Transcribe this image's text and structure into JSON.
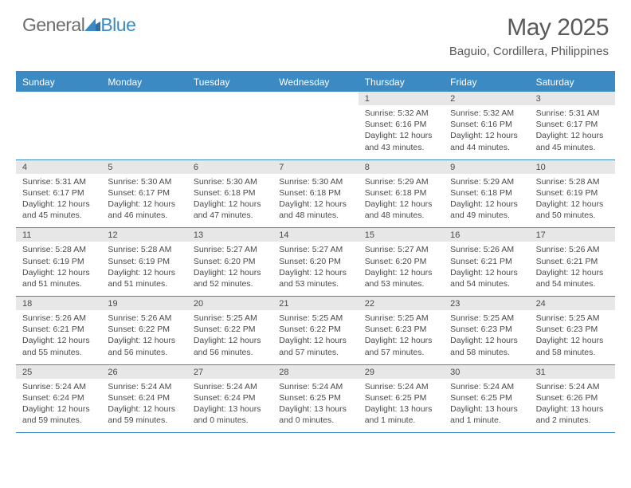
{
  "logo": {
    "part1": "General",
    "part2": "Blue"
  },
  "title": "May 2025",
  "location": "Baguio, Cordillera, Philippines",
  "colors": {
    "accent": "#3b8ac4",
    "header_bg": "#3b8ac4",
    "daynum_bg": "#e7e7e7",
    "text": "#4a4a4a",
    "title_text": "#5a5a5a",
    "logo_gray": "#6d6d6d"
  },
  "dow": [
    "Sunday",
    "Monday",
    "Tuesday",
    "Wednesday",
    "Thursday",
    "Friday",
    "Saturday"
  ],
  "weeks": [
    [
      {
        "n": "",
        "s": ""
      },
      {
        "n": "",
        "s": ""
      },
      {
        "n": "",
        "s": ""
      },
      {
        "n": "",
        "s": ""
      },
      {
        "n": "1",
        "s": "Sunrise: 5:32 AM\nSunset: 6:16 PM\nDaylight: 12 hours and 43 minutes."
      },
      {
        "n": "2",
        "s": "Sunrise: 5:32 AM\nSunset: 6:16 PM\nDaylight: 12 hours and 44 minutes."
      },
      {
        "n": "3",
        "s": "Sunrise: 5:31 AM\nSunset: 6:17 PM\nDaylight: 12 hours and 45 minutes."
      }
    ],
    [
      {
        "n": "4",
        "s": "Sunrise: 5:31 AM\nSunset: 6:17 PM\nDaylight: 12 hours and 45 minutes."
      },
      {
        "n": "5",
        "s": "Sunrise: 5:30 AM\nSunset: 6:17 PM\nDaylight: 12 hours and 46 minutes."
      },
      {
        "n": "6",
        "s": "Sunrise: 5:30 AM\nSunset: 6:18 PM\nDaylight: 12 hours and 47 minutes."
      },
      {
        "n": "7",
        "s": "Sunrise: 5:30 AM\nSunset: 6:18 PM\nDaylight: 12 hours and 48 minutes."
      },
      {
        "n": "8",
        "s": "Sunrise: 5:29 AM\nSunset: 6:18 PM\nDaylight: 12 hours and 48 minutes."
      },
      {
        "n": "9",
        "s": "Sunrise: 5:29 AM\nSunset: 6:18 PM\nDaylight: 12 hours and 49 minutes."
      },
      {
        "n": "10",
        "s": "Sunrise: 5:28 AM\nSunset: 6:19 PM\nDaylight: 12 hours and 50 minutes."
      }
    ],
    [
      {
        "n": "11",
        "s": "Sunrise: 5:28 AM\nSunset: 6:19 PM\nDaylight: 12 hours and 51 minutes."
      },
      {
        "n": "12",
        "s": "Sunrise: 5:28 AM\nSunset: 6:19 PM\nDaylight: 12 hours and 51 minutes."
      },
      {
        "n": "13",
        "s": "Sunrise: 5:27 AM\nSunset: 6:20 PM\nDaylight: 12 hours and 52 minutes."
      },
      {
        "n": "14",
        "s": "Sunrise: 5:27 AM\nSunset: 6:20 PM\nDaylight: 12 hours and 53 minutes."
      },
      {
        "n": "15",
        "s": "Sunrise: 5:27 AM\nSunset: 6:20 PM\nDaylight: 12 hours and 53 minutes."
      },
      {
        "n": "16",
        "s": "Sunrise: 5:26 AM\nSunset: 6:21 PM\nDaylight: 12 hours and 54 minutes."
      },
      {
        "n": "17",
        "s": "Sunrise: 5:26 AM\nSunset: 6:21 PM\nDaylight: 12 hours and 54 minutes."
      }
    ],
    [
      {
        "n": "18",
        "s": "Sunrise: 5:26 AM\nSunset: 6:21 PM\nDaylight: 12 hours and 55 minutes."
      },
      {
        "n": "19",
        "s": "Sunrise: 5:26 AM\nSunset: 6:22 PM\nDaylight: 12 hours and 56 minutes."
      },
      {
        "n": "20",
        "s": "Sunrise: 5:25 AM\nSunset: 6:22 PM\nDaylight: 12 hours and 56 minutes."
      },
      {
        "n": "21",
        "s": "Sunrise: 5:25 AM\nSunset: 6:22 PM\nDaylight: 12 hours and 57 minutes."
      },
      {
        "n": "22",
        "s": "Sunrise: 5:25 AM\nSunset: 6:23 PM\nDaylight: 12 hours and 57 minutes."
      },
      {
        "n": "23",
        "s": "Sunrise: 5:25 AM\nSunset: 6:23 PM\nDaylight: 12 hours and 58 minutes."
      },
      {
        "n": "24",
        "s": "Sunrise: 5:25 AM\nSunset: 6:23 PM\nDaylight: 12 hours and 58 minutes."
      }
    ],
    [
      {
        "n": "25",
        "s": "Sunrise: 5:24 AM\nSunset: 6:24 PM\nDaylight: 12 hours and 59 minutes."
      },
      {
        "n": "26",
        "s": "Sunrise: 5:24 AM\nSunset: 6:24 PM\nDaylight: 12 hours and 59 minutes."
      },
      {
        "n": "27",
        "s": "Sunrise: 5:24 AM\nSunset: 6:24 PM\nDaylight: 13 hours and 0 minutes."
      },
      {
        "n": "28",
        "s": "Sunrise: 5:24 AM\nSunset: 6:25 PM\nDaylight: 13 hours and 0 minutes."
      },
      {
        "n": "29",
        "s": "Sunrise: 5:24 AM\nSunset: 6:25 PM\nDaylight: 13 hours and 1 minute."
      },
      {
        "n": "30",
        "s": "Sunrise: 5:24 AM\nSunset: 6:25 PM\nDaylight: 13 hours and 1 minute."
      },
      {
        "n": "31",
        "s": "Sunrise: 5:24 AM\nSunset: 6:26 PM\nDaylight: 13 hours and 2 minutes."
      }
    ]
  ]
}
